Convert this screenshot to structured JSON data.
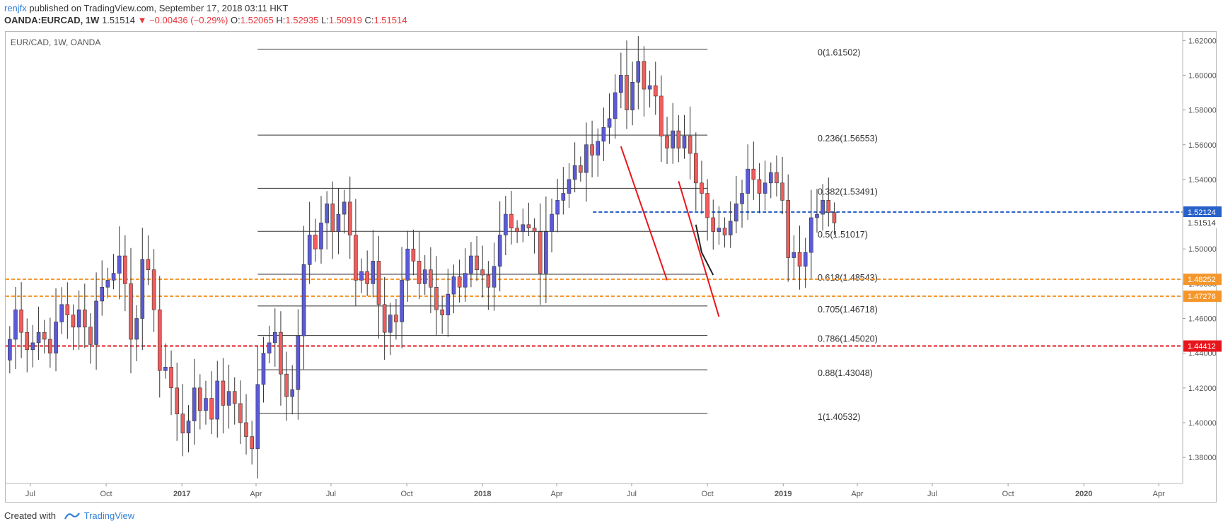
{
  "header": {
    "author": "renjfx",
    "published": " published on TradingView.com, September 17, 2018 03:11 HKT"
  },
  "quote": {
    "symbol": "OANDA:EURCAD, 1W",
    "last": "1.51514",
    "change": "▼ −0.00436 (−0.29%)",
    "o_label": "O:",
    "o": "1.52065",
    "h_label": "H:",
    "h": "1.52935",
    "l_label": "L:",
    "l": "1.50919",
    "c_label": "C:",
    "c": "1.51514"
  },
  "footer": {
    "created": "Created with",
    "brand": "TradingView"
  },
  "colors": {
    "up": "#5b5bd6",
    "down": "#ef5d5d",
    "wick": "#333333",
    "blue_line": "#2861c9",
    "orange_line": "#f5962b",
    "red_line": "#e8161c",
    "trend": "#e8161c"
  },
  "chart_data": {
    "type": "candlestick",
    "title": "EUR/CAD, 1W, OANDA",
    "ylim": [
      1.365,
      1.625
    ],
    "x_axis_range": [
      "2016-06-01",
      "2020-04-30"
    ],
    "y_ticks": [
      "1.62000",
      "1.60000",
      "1.58000",
      "1.56000",
      "1.54000",
      "1.52000",
      "1.50000",
      "1.48000",
      "1.46000",
      "1.44000",
      "1.42000",
      "1.40000",
      "1.38000"
    ],
    "x_ticks": [
      {
        "date": "2016-07-01",
        "label": "Jul"
      },
      {
        "date": "2016-10-01",
        "label": "Oct"
      },
      {
        "date": "2017-01-01",
        "label": "2017"
      },
      {
        "date": "2017-04-01",
        "label": "Apr"
      },
      {
        "date": "2017-07-01",
        "label": "Jul"
      },
      {
        "date": "2017-10-01",
        "label": "Oct"
      },
      {
        "date": "2018-01-01",
        "label": "2018"
      },
      {
        "date": "2018-04-01",
        "label": "Apr"
      },
      {
        "date": "2018-07-01",
        "label": "Jul"
      },
      {
        "date": "2018-10-01",
        "label": "Oct"
      },
      {
        "date": "2019-01-01",
        "label": "2019"
      },
      {
        "date": "2019-04-01",
        "label": "Apr"
      },
      {
        "date": "2019-07-01",
        "label": "Jul"
      },
      {
        "date": "2019-10-01",
        "label": "Oct"
      },
      {
        "date": "2020-01-01",
        "label": "2020"
      },
      {
        "date": "2020-04-01",
        "label": "Apr"
      }
    ],
    "fib_start_date": "2017-04-03",
    "fib_end_date": "2018-10-01",
    "fib_levels": [
      {
        "label": "0(1.61502)",
        "value": 1.61502
      },
      {
        "label": "0.236(1.56553)",
        "value": 1.56553
      },
      {
        "label": "0.382(1.53491)",
        "value": 1.53491
      },
      {
        "label": "0.5(1.51017)",
        "value": 1.51017
      },
      {
        "label": "0.618(1.48543)",
        "value": 1.48543
      },
      {
        "label": "0.705(1.46718)",
        "value": 1.46718
      },
      {
        "label": "0.786(1.45020)",
        "value": 1.4502
      },
      {
        "label": "0.88(1.43048)",
        "value": 1.43048
      },
      {
        "label": "1(1.40532)",
        "value": 1.40532
      }
    ],
    "horizontal_lines": [
      {
        "label": "1.52124",
        "value": 1.52124,
        "color": "#2861c9",
        "start_date": "2018-05-15"
      },
      {
        "label": "1.48252",
        "value": 1.48252,
        "color": "#f5962b",
        "start_date": "2016-06-01"
      },
      {
        "label": "1.47276",
        "value": 1.47276,
        "color": "#f5962b",
        "start_date": "2016-06-01"
      },
      {
        "label": "1.44412",
        "value": 1.44412,
        "color": "#e8161c",
        "start_date": "2016-06-01"
      }
    ],
    "current_price": {
      "label": "1.51514",
      "value": 1.51514
    },
    "trend_lines": [
      {
        "color": "#e8161c",
        "points": [
          [
            "2018-06-18",
            1.559
          ],
          [
            "2018-08-13",
            1.482
          ]
        ]
      },
      {
        "color": "#e8161c",
        "points": [
          [
            "2018-08-27",
            1.539
          ],
          [
            "2018-10-15",
            1.461
          ]
        ]
      },
      {
        "color": "#222222",
        "points": [
          [
            "2018-09-17",
            1.514
          ],
          [
            "2018-09-24",
            1.498
          ],
          [
            "2018-10-08",
            1.485
          ]
        ]
      }
    ],
    "series_start": "2016-06-06",
    "closes": [
      1.448,
      1.465,
      1.452,
      1.442,
      1.446,
      1.452,
      1.448,
      1.44,
      1.458,
      1.468,
      1.462,
      1.455,
      1.465,
      1.455,
      1.445,
      1.47,
      1.478,
      1.482,
      1.486,
      1.496,
      1.48,
      1.448,
      1.46,
      1.494,
      1.488,
      1.465,
      1.43,
      1.432,
      1.42,
      1.405,
      1.394,
      1.401,
      1.42,
      1.407,
      1.414,
      1.402,
      1.424,
      1.41,
      1.418,
      1.411,
      1.4,
      1.392,
      1.385,
      1.422,
      1.44,
      1.446,
      1.452,
      1.428,
      1.415,
      1.419,
      1.45,
      1.491,
      1.508,
      1.5,
      1.515,
      1.526,
      1.51,
      1.52,
      1.527,
      1.508,
      1.482,
      1.487,
      1.48,
      1.493,
      1.468,
      1.452,
      1.462,
      1.458,
      1.482,
      1.5,
      1.493,
      1.48,
      1.488,
      1.478,
      1.465,
      1.462,
      1.474,
      1.484,
      1.478,
      1.486,
      1.496,
      1.488,
      1.485,
      1.478,
      1.49,
      1.508,
      1.52,
      1.512,
      1.51,
      1.514,
      1.512,
      1.51,
      1.486,
      1.51,
      1.52,
      1.528,
      1.532,
      1.54,
      1.548,
      1.544,
      1.56,
      1.554,
      1.562,
      1.57,
      1.575,
      1.59,
      1.6,
      1.58,
      1.596,
      1.608,
      1.592,
      1.594,
      1.588,
      1.565,
      1.558,
      1.568,
      1.558,
      1.565,
      1.555,
      1.538,
      1.532,
      1.518,
      1.51,
      1.512,
      1.508,
      1.516,
      1.526,
      1.532,
      1.546,
      1.54,
      1.532,
      1.538,
      1.544,
      1.538,
      1.528,
      1.495,
      1.498,
      1.49,
      1.498,
      1.518,
      1.52,
      1.528,
      1.521,
      1.515
    ]
  }
}
